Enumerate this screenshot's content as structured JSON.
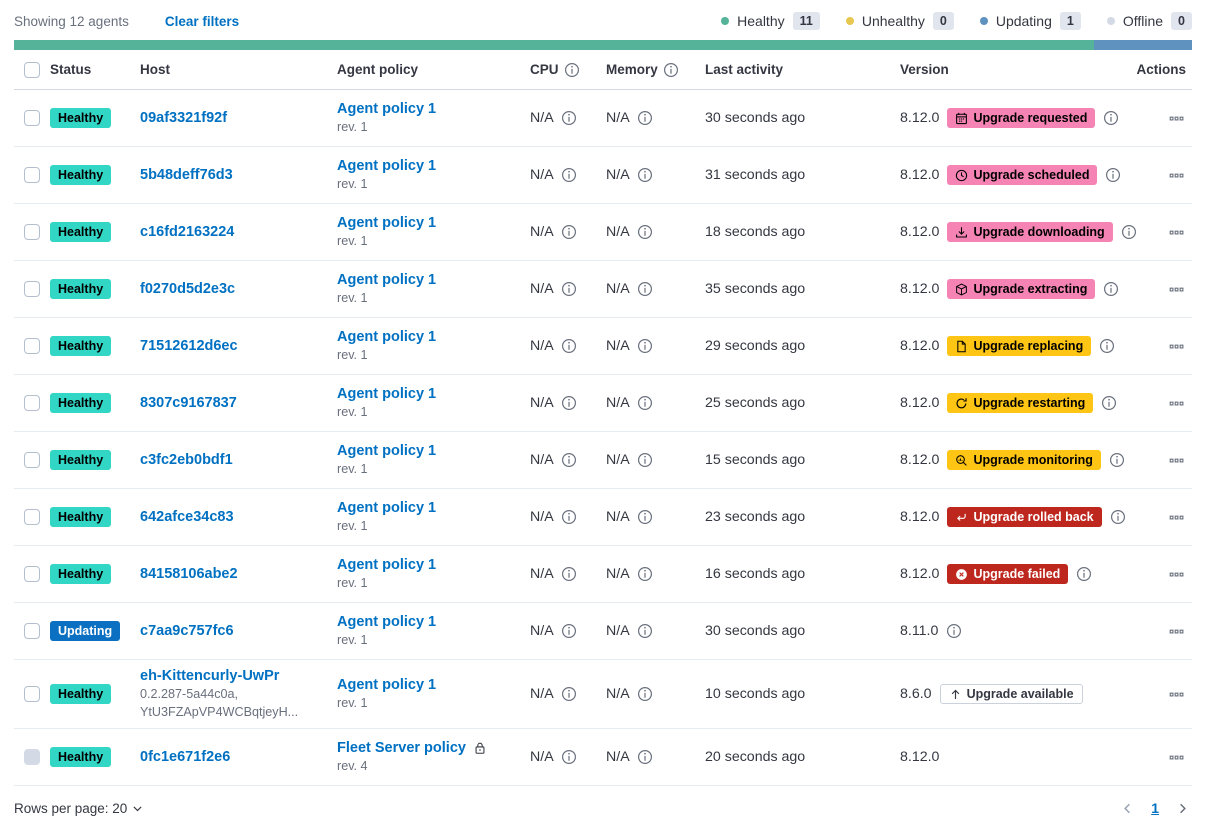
{
  "toolbar": {
    "showing_text": "Showing 12 agents",
    "clear_filters_label": "Clear filters"
  },
  "legend": {
    "items": [
      {
        "label": "Healthy",
        "count": "11",
        "color": "#54b399"
      },
      {
        "label": "Unhealthy",
        "count": "0",
        "color": "#e7c74f"
      },
      {
        "label": "Updating",
        "count": "1",
        "color": "#6092c0"
      },
      {
        "label": "Offline",
        "count": "0",
        "color": "#d3dae6"
      }
    ]
  },
  "status_bar": {
    "segments": [
      {
        "status": "healthy",
        "color": "#54b399",
        "fraction": 0.9167
      },
      {
        "status": "updating",
        "color": "#6092c0",
        "fraction": 0.0833
      }
    ]
  },
  "table": {
    "headers": [
      {
        "label": "Status"
      },
      {
        "label": "Host"
      },
      {
        "label": "Agent policy"
      },
      {
        "label": "CPU",
        "info": true
      },
      {
        "label": "Memory",
        "info": true
      },
      {
        "label": "Last activity"
      },
      {
        "label": "Version"
      },
      {
        "label": "Actions"
      }
    ],
    "rows": [
      {
        "status": "Healthy",
        "status_type": "healthy",
        "host": "09af3321f92f",
        "host_sub": [],
        "policy": "Agent policy 1",
        "policy_rev": "rev. 1",
        "policy_locked": false,
        "cpu": "N/A",
        "memory": "N/A",
        "last_activity": "30 seconds ago",
        "version": "8.12.0",
        "upgrade_badge": {
          "label": "Upgrade requested",
          "style": "pink",
          "icon": "calendar-icon"
        },
        "version_info": true,
        "checkbox_disabled": false
      },
      {
        "status": "Healthy",
        "status_type": "healthy",
        "host": "5b48deff76d3",
        "host_sub": [],
        "policy": "Agent policy 1",
        "policy_rev": "rev. 1",
        "policy_locked": false,
        "cpu": "N/A",
        "memory": "N/A",
        "last_activity": "31 seconds ago",
        "version": "8.12.0",
        "upgrade_badge": {
          "label": "Upgrade scheduled",
          "style": "pink",
          "icon": "clock-icon"
        },
        "version_info": true,
        "checkbox_disabled": false
      },
      {
        "status": "Healthy",
        "status_type": "healthy",
        "host": "c16fd2163224",
        "host_sub": [],
        "policy": "Agent policy 1",
        "policy_rev": "rev. 1",
        "policy_locked": false,
        "cpu": "N/A",
        "memory": "N/A",
        "last_activity": "18 seconds ago",
        "version": "8.12.0",
        "upgrade_badge": {
          "label": "Upgrade downloading",
          "style": "pink",
          "icon": "download-icon"
        },
        "version_info": true,
        "checkbox_disabled": false
      },
      {
        "status": "Healthy",
        "status_type": "healthy",
        "host": "f0270d5d2e3c",
        "host_sub": [],
        "policy": "Agent policy 1",
        "policy_rev": "rev. 1",
        "policy_locked": false,
        "cpu": "N/A",
        "memory": "N/A",
        "last_activity": "35 seconds ago",
        "version": "8.12.0",
        "upgrade_badge": {
          "label": "Upgrade extracting",
          "style": "pink",
          "icon": "package-icon"
        },
        "version_info": true,
        "checkbox_disabled": false
      },
      {
        "status": "Healthy",
        "status_type": "healthy",
        "host": "71512612d6ec",
        "host_sub": [],
        "policy": "Agent policy 1",
        "policy_rev": "rev. 1",
        "policy_locked": false,
        "cpu": "N/A",
        "memory": "N/A",
        "last_activity": "29 seconds ago",
        "version": "8.12.0",
        "upgrade_badge": {
          "label": "Upgrade replacing",
          "style": "yellow",
          "icon": "document-icon"
        },
        "version_info": true,
        "checkbox_disabled": false
      },
      {
        "status": "Healthy",
        "status_type": "healthy",
        "host": "8307c9167837",
        "host_sub": [],
        "policy": "Agent policy 1",
        "policy_rev": "rev. 1",
        "policy_locked": false,
        "cpu": "N/A",
        "memory": "N/A",
        "last_activity": "25 seconds ago",
        "version": "8.12.0",
        "upgrade_badge": {
          "label": "Upgrade restarting",
          "style": "yellow",
          "icon": "refresh-icon"
        },
        "version_info": true,
        "checkbox_disabled": false
      },
      {
        "status": "Healthy",
        "status_type": "healthy",
        "host": "c3fc2eb0bdf1",
        "host_sub": [],
        "policy": "Agent policy 1",
        "policy_rev": "rev. 1",
        "policy_locked": false,
        "cpu": "N/A",
        "memory": "N/A",
        "last_activity": "15 seconds ago",
        "version": "8.12.0",
        "upgrade_badge": {
          "label": "Upgrade monitoring",
          "style": "yellow",
          "icon": "inspect-icon"
        },
        "version_info": true,
        "checkbox_disabled": false
      },
      {
        "status": "Healthy",
        "status_type": "healthy",
        "host": "642afce34c83",
        "host_sub": [],
        "policy": "Agent policy 1",
        "policy_rev": "rev. 1",
        "policy_locked": false,
        "cpu": "N/A",
        "memory": "N/A",
        "last_activity": "23 seconds ago",
        "version": "8.12.0",
        "upgrade_badge": {
          "label": "Upgrade rolled back",
          "style": "red",
          "icon": "return-icon"
        },
        "version_info": true,
        "checkbox_disabled": false
      },
      {
        "status": "Healthy",
        "status_type": "healthy",
        "host": "84158106abe2",
        "host_sub": [],
        "policy": "Agent policy 1",
        "policy_rev": "rev. 1",
        "policy_locked": false,
        "cpu": "N/A",
        "memory": "N/A",
        "last_activity": "16 seconds ago",
        "version": "8.12.0",
        "upgrade_badge": {
          "label": "Upgrade failed",
          "style": "red",
          "icon": "error-icon"
        },
        "version_info": true,
        "checkbox_disabled": false
      },
      {
        "status": "Updating",
        "status_type": "updating",
        "host": "c7aa9c757fc6",
        "host_sub": [],
        "policy": "Agent policy 1",
        "policy_rev": "rev. 1",
        "policy_locked": false,
        "cpu": "N/A",
        "memory": "N/A",
        "last_activity": "30 seconds ago",
        "version": "8.11.0",
        "upgrade_badge": null,
        "version_info": true,
        "checkbox_disabled": false
      },
      {
        "status": "Healthy",
        "status_type": "healthy",
        "host": "eh-Kittencurly-UwPr",
        "host_sub": [
          "0.2.287-5a44c0a,",
          "YtU3FZApVP4WCBqtjeyH..."
        ],
        "policy": "Agent policy 1",
        "policy_rev": "rev. 1",
        "policy_locked": false,
        "cpu": "N/A",
        "memory": "N/A",
        "last_activity": "10 seconds ago",
        "version": "8.6.0",
        "upgrade_badge": {
          "label": "Upgrade available",
          "style": "hollow",
          "icon": "arrow-up-icon"
        },
        "version_info": false,
        "checkbox_disabled": false
      },
      {
        "status": "Healthy",
        "status_type": "healthy",
        "host": "0fc1e671f2e6",
        "host_sub": [],
        "policy": "Fleet Server policy",
        "policy_rev": "rev. 4",
        "policy_locked": true,
        "cpu": "N/A",
        "memory": "N/A",
        "last_activity": "20 seconds ago",
        "version": "8.12.0",
        "upgrade_badge": null,
        "version_info": false,
        "checkbox_disabled": true
      }
    ]
  },
  "footer": {
    "rows_per_page_label": "Rows per page: 20",
    "current_page": "1"
  },
  "colors": {
    "link_blue": "#0071c2",
    "healthy_badge": "#32d6c5",
    "updating_badge": "#0b70c1",
    "pink_badge": "#f584b4",
    "yellow_badge": "#fec514",
    "red_badge": "#bd271e"
  }
}
